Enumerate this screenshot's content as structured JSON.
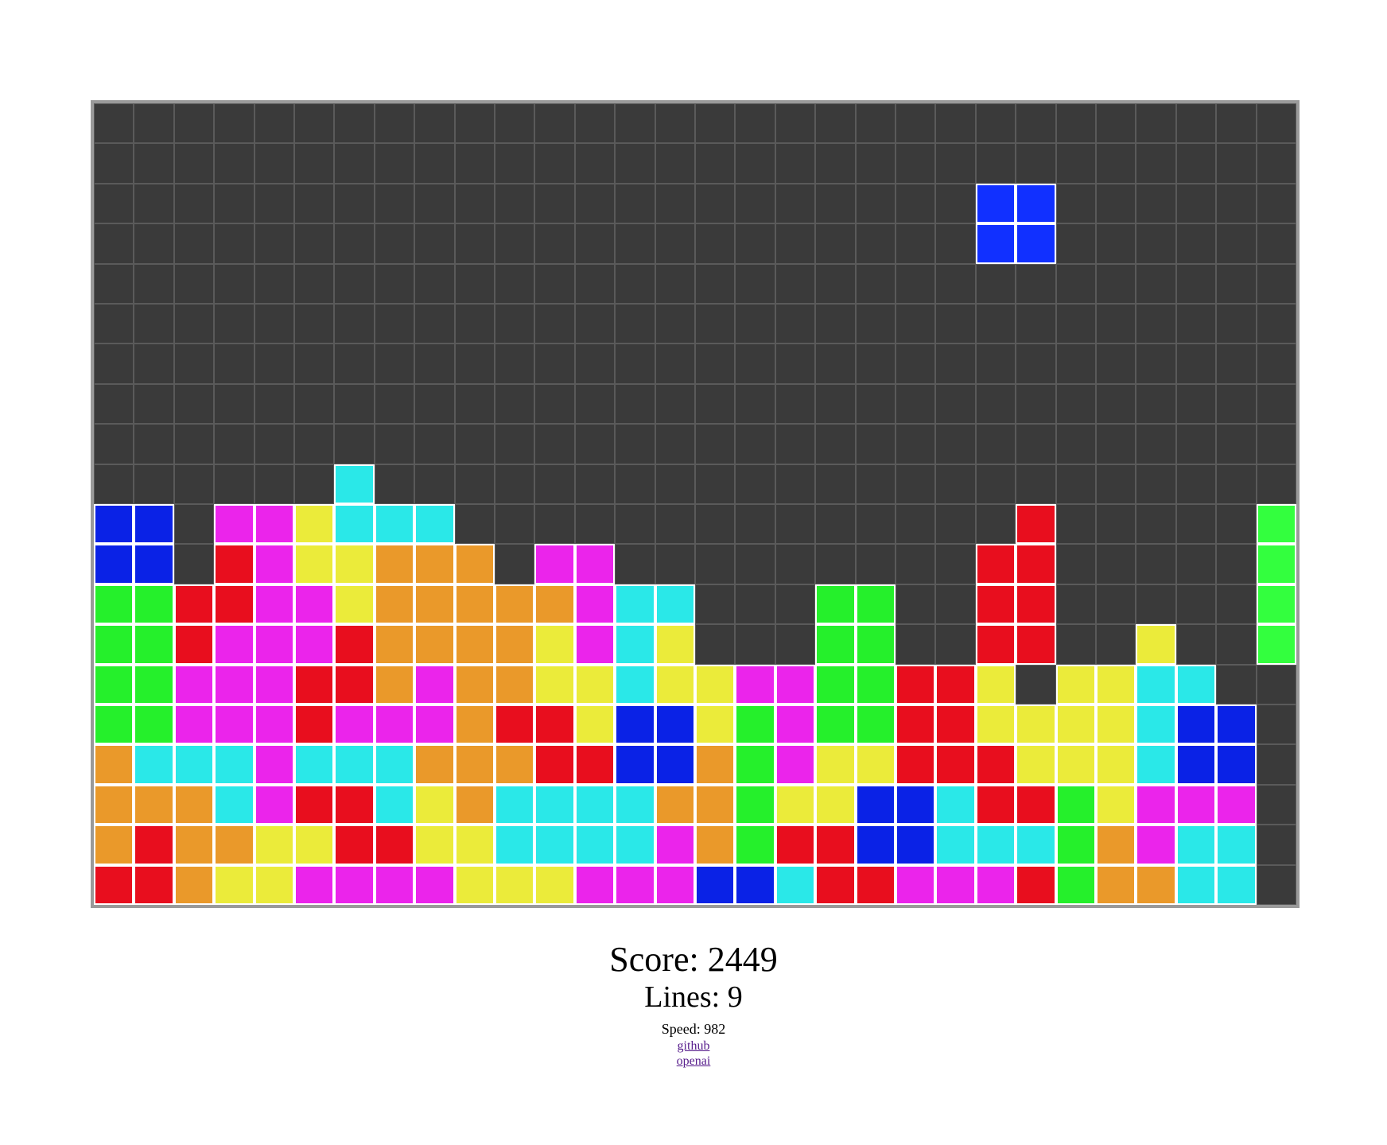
{
  "board": {
    "cols": 30,
    "rows": 20,
    "colors": {
      "B": "#0a22e6",
      "P": "#1130ff",
      "M": "#eb24eb",
      "Y": "#ebeb3a",
      "C": "#2ae8e8",
      "O": "#ea992a",
      "R": "#e80e1e",
      "G": "#25f02b",
      "L": "#33ff3e"
    },
    "grid": [
      "..............................",
      "..............................",
      "......................PP......",
      "......................PP......",
      "..............................",
      "..............................",
      "..............................",
      "..............................",
      "..............................",
      "......C.......................",
      "BB.MMYCCC..............R.....L",
      "BB.RMYYOOO.MM.........RR.....L",
      "GGRRMMYOOOOOMCC...GG..RR.....L",
      "GGRMMMROOOOYMCY...GG..RR..Y..L",
      "GGMMMRROMOOYYCYYMMGGRRY.YYCC.",
      "GGMMMRMMMORRYBBYGMGGRRYYYYCBB.",
      "OCCCMCCCOOORRBBOGMYYRRRYYYCBB.",
      "OOOCMRRCYOCCCCOOGYYBBCRRGYMMM.",
      "OROOYYRRYYCCCCMOGRRBBCCCGOMCC.",
      "RROYYMMMMYYYMMMBBCRRMMMRGOOCC."
    ],
    "active_piece": "P"
  },
  "stats": {
    "score_label": "Score: 2449",
    "lines_label": "Lines: 9",
    "speed_label": "Speed: 982"
  },
  "links": {
    "github": "github",
    "openai": "openai"
  }
}
